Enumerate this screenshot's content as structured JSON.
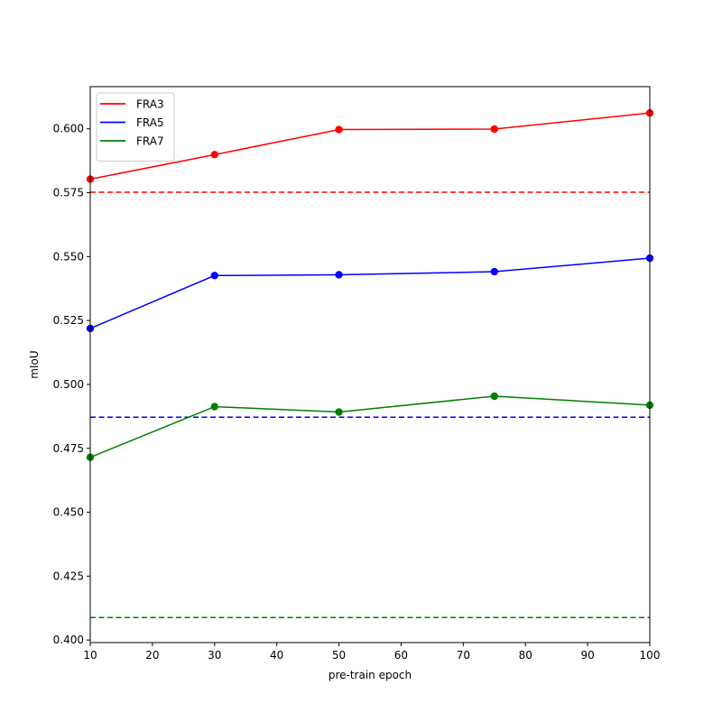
{
  "chart_data": {
    "type": "line",
    "xlabel": "pre-train epoch",
    "ylabel": "mIoU",
    "xlim": [
      10,
      100
    ],
    "ylim": [
      0.399,
      0.6165
    ],
    "xticks": [
      10,
      20,
      30,
      40,
      50,
      60,
      70,
      80,
      90,
      100
    ],
    "xtick_labels": [
      "10",
      "20",
      "30",
      "40",
      "50",
      "60",
      "70",
      "80",
      "90",
      "100"
    ],
    "yticks": [
      0.4,
      0.425,
      0.45,
      0.475,
      0.5,
      0.525,
      0.55,
      0.575,
      0.6
    ],
    "ytick_labels": [
      "0.400",
      "0.425",
      "0.450",
      "0.475",
      "0.500",
      "0.525",
      "0.550",
      "0.575",
      "0.600"
    ],
    "grid": false,
    "legend_position": "top-left",
    "series": [
      {
        "name": "FRA3",
        "color": "#ff0000",
        "x": [
          10,
          30,
          50,
          75,
          100
        ],
        "y": [
          0.5803,
          0.5899,
          0.5997,
          0.5999,
          0.6062
        ],
        "baseline": 0.5752
      },
      {
        "name": "FRA5",
        "color": "#0000ff",
        "x": [
          10,
          30,
          50,
          75,
          100
        ],
        "y": [
          0.5219,
          0.5426,
          0.5429,
          0.5441,
          0.5494
        ],
        "baseline": 0.4872
      },
      {
        "name": "FRA7",
        "color": "#008000",
        "x": [
          10,
          30,
          50,
          75,
          100
        ],
        "y": [
          0.4715,
          0.4913,
          0.4892,
          0.4954,
          0.4919
        ],
        "baseline": 0.4088
      }
    ]
  }
}
